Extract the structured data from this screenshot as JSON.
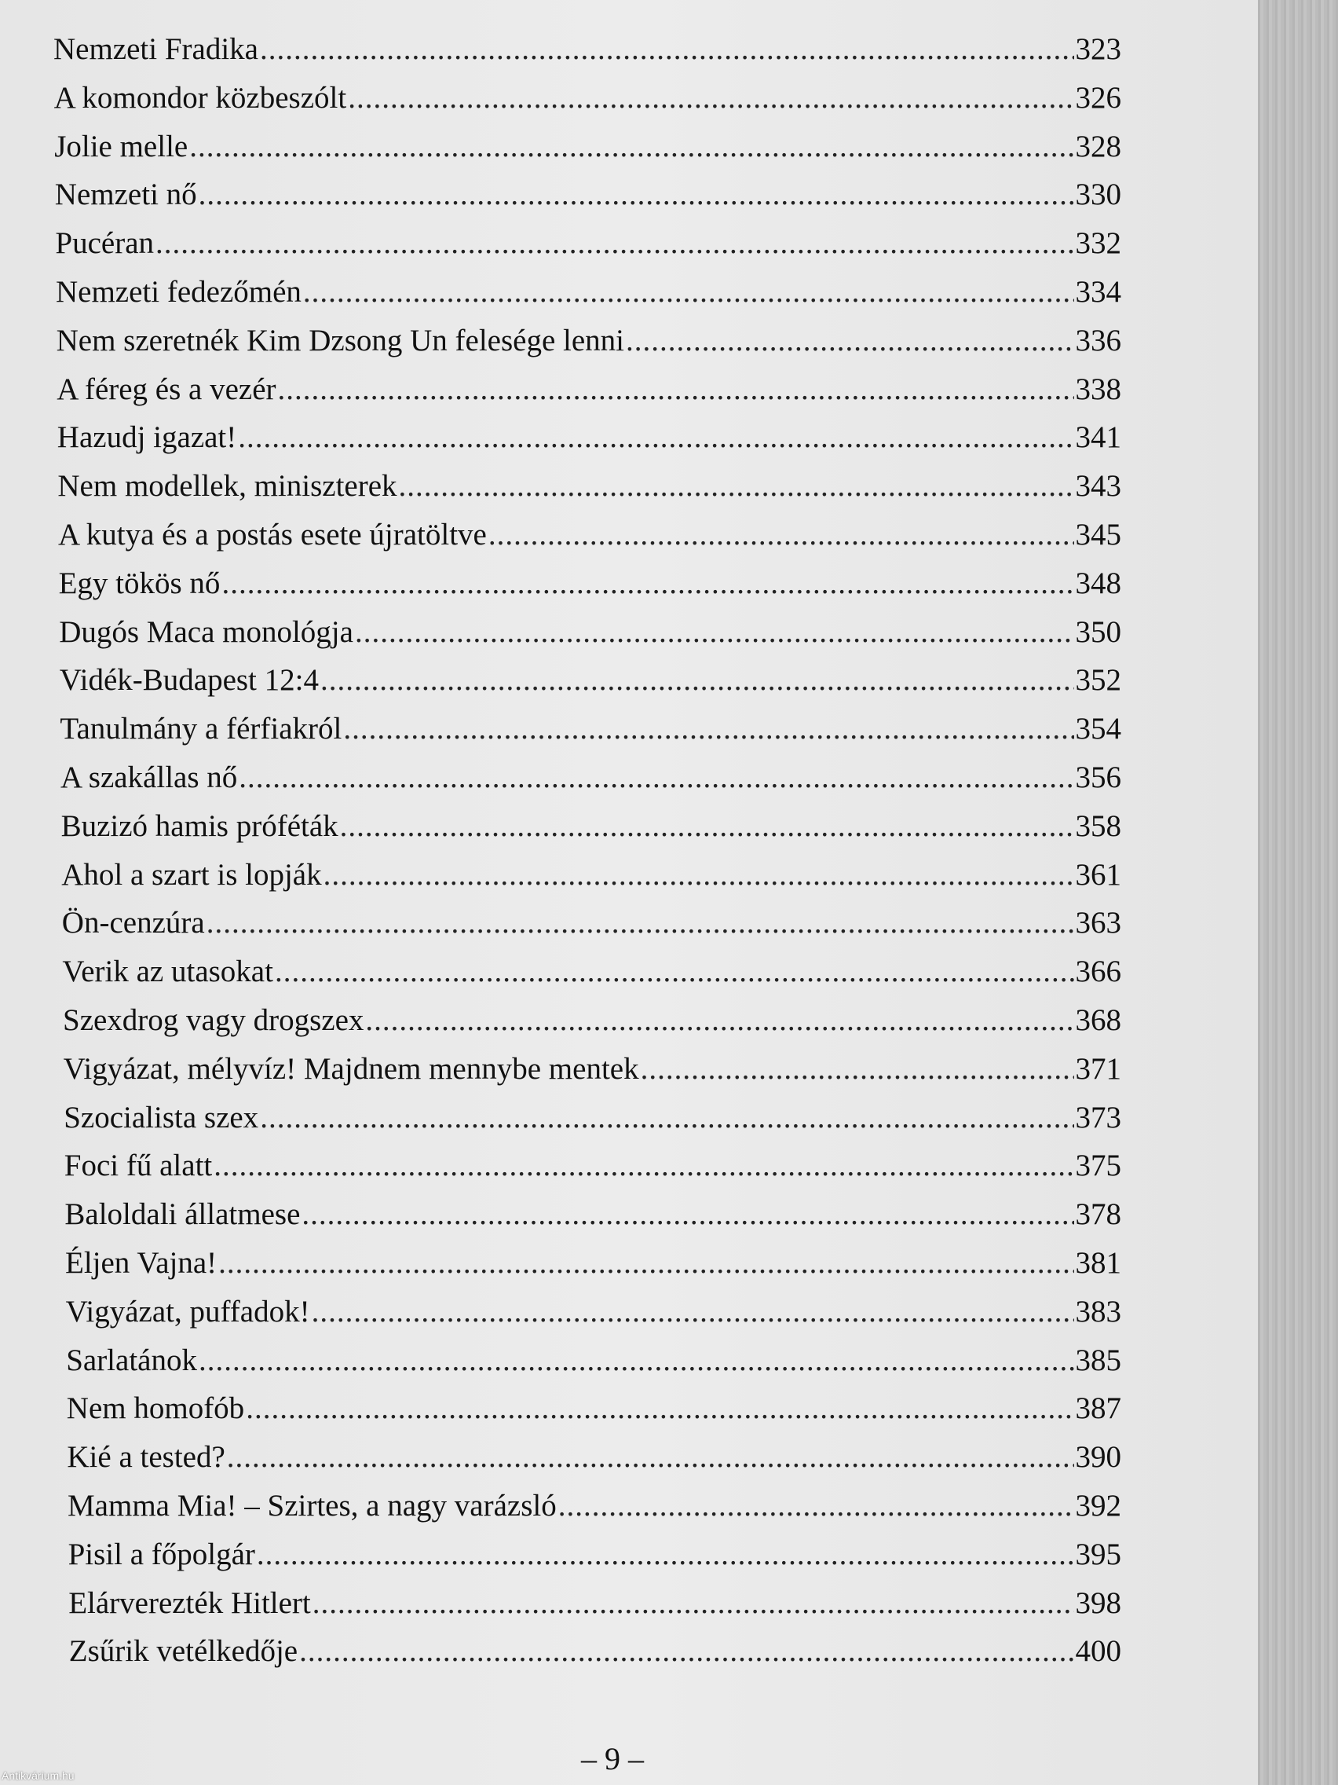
{
  "toc": [
    {
      "title": "Nemzeti Fradika",
      "page": "323"
    },
    {
      "title": "A komondor közbeszólt",
      "page": "326"
    },
    {
      "title": "Jolie melle",
      "page": "328"
    },
    {
      "title": "Nemzeti nő",
      "page": "330"
    },
    {
      "title": "Pucéran",
      "page": "332"
    },
    {
      "title": "Nemzeti fedezőmén",
      "page": "334"
    },
    {
      "title": "Nem szeretnék Kim Dzsong Un felesége lenni",
      "page": "336"
    },
    {
      "title": "A féreg és a vezér",
      "page": "338"
    },
    {
      "title": "Hazudj igazat!",
      "page": "341"
    },
    {
      "title": "Nem modellek, miniszterek",
      "page": "343"
    },
    {
      "title": "A kutya és a postás esete újratöltve",
      "page": "345"
    },
    {
      "title": "Egy tökös nő",
      "page": "348"
    },
    {
      "title": "Dugós Maca monológja",
      "page": "350"
    },
    {
      "title": "Vidék-Budapest 12:4",
      "page": "352"
    },
    {
      "title": "Tanulmány a férfiakról",
      "page": "354"
    },
    {
      "title": "A szakállas nő",
      "page": "356"
    },
    {
      "title": "Buzizó hamis próféták",
      "page": "358"
    },
    {
      "title": "Ahol a szart is lopják",
      "page": "361"
    },
    {
      "title": "Ön-cenzúra",
      "page": "363"
    },
    {
      "title": "Verik az utasokat",
      "page": "366"
    },
    {
      "title": "Szexdrog vagy drogszex",
      "page": "368"
    },
    {
      "title": "Vigyázat, mélyvíz! Majdnem mennybe mentek",
      "page": "371"
    },
    {
      "title": "Szocialista szex",
      "page": "373"
    },
    {
      "title": "Foci fű alatt",
      "page": "375"
    },
    {
      "title": "Baloldali állatmese",
      "page": "378"
    },
    {
      "title": "Éljen Vajna!",
      "page": "381"
    },
    {
      "title": "Vigyázat, puffadok!",
      "page": "383"
    },
    {
      "title": "Sarlatánok",
      "page": "385"
    },
    {
      "title": "Nem homofób",
      "page": "387"
    },
    {
      "title": "Kié a tested?",
      "page": "390"
    },
    {
      "title": "Mamma Mia! – Szirtes, a nagy varázsló",
      "page": "392"
    },
    {
      "title": "Pisil a főpolgár",
      "page": "395"
    },
    {
      "title": "Elárverezték Hitlert",
      "page": "398"
    },
    {
      "title": "Zsűrik vetélkedője",
      "page": "400"
    }
  ],
  "page_number": "– 9 –",
  "watermark": "Antikvárium.hu"
}
